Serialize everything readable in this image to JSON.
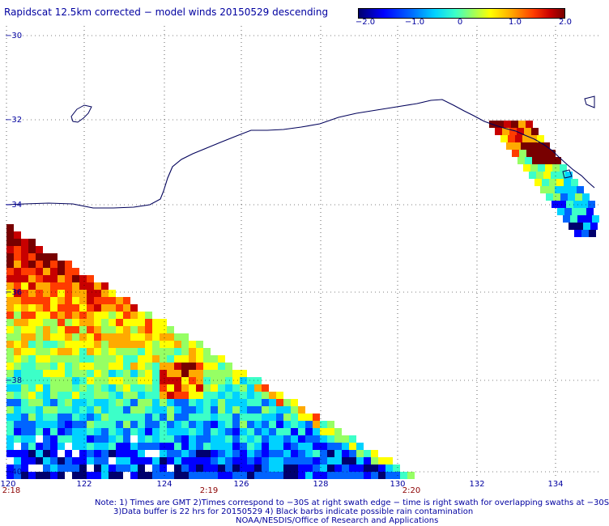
{
  "title": "Rapidscat 12.5km corrected − model winds 20150529 descending",
  "colorbar": {
    "ticks": [
      "−2.0",
      "−1.0",
      "0",
      "1.0",
      "2.0"
    ],
    "colors": [
      "#00006e",
      "#0000ff",
      "#0064ff",
      "#00d2ff",
      "#3cffc8",
      "#96ff64",
      "#ffff00",
      "#ffaa00",
      "#ff3c00",
      "#c80000",
      "#780000"
    ]
  },
  "lat_labels": [
    "−30",
    "−32",
    "−34",
    "−36",
    "−38",
    "−40"
  ],
  "lon_labels": [
    "120",
    "122",
    "124",
    "126",
    "128",
    "130",
    "132",
    "134"
  ],
  "time_labels": [
    "2:18",
    "2:19",
    "2:20"
  ],
  "notes": [
    "Note: 1) Times are GMT 2)Times correspond to −30S at right swath edge − time is right swath for overlapping swaths at −30S",
    "3)Data buffer is 22 hrs for 20150529 4) Black barbs indicate possible rain contamination",
    "NOAA/NESDIS/Office of Research and Applications"
  ]
}
